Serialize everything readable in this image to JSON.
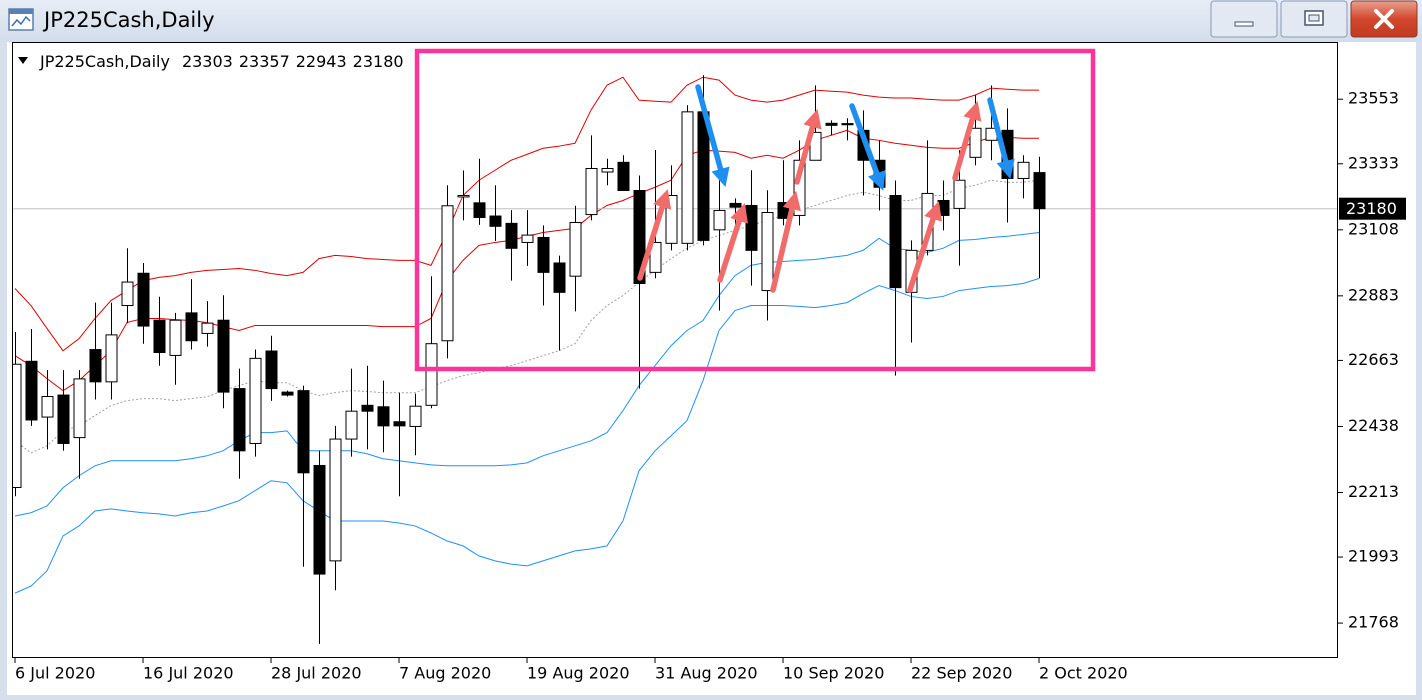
{
  "window": {
    "title": "JP225Cash,Daily"
  },
  "chart_data": {
    "type": "candlestick",
    "title": "JP225Cash,Daily",
    "categories": [
      "6 Jul 2020",
      null,
      null,
      null,
      null,
      null,
      null,
      null,
      "16 Jul 2020",
      null,
      null,
      null,
      null,
      null,
      null,
      null,
      "28 Jul 2020",
      null,
      null,
      null,
      null,
      null,
      null,
      null,
      "7 Aug 2020",
      null,
      null,
      null,
      null,
      null,
      null,
      null,
      "19 Aug 2020",
      null,
      null,
      null,
      null,
      null,
      null,
      null,
      "31 Aug 2020",
      null,
      null,
      null,
      null,
      null,
      null,
      null,
      "10 Sep 2020",
      null,
      null,
      null,
      null,
      null,
      null,
      null,
      "22 Sep 2020",
      null,
      null,
      null,
      null,
      null,
      null,
      null,
      "2 Oct 2020"
    ],
    "candles": {
      "up_color": "#ffffff",
      "down_color": "#000000",
      "open": [
        22230,
        22660,
        22470,
        22545,
        22400,
        22700,
        22590,
        22850,
        22960,
        22800,
        22680,
        22825,
        22755,
        22800,
        22567,
        22380,
        22695,
        22555,
        22560,
        22305,
        21980,
        22395,
        22510,
        22505,
        22454,
        22438,
        22510,
        22730,
        23220,
        23200,
        23155,
        23130,
        23065,
        23082,
        22995,
        22950,
        23160,
        23305,
        23338,
        23242,
        22963,
        23062,
        23062,
        23510,
        23108,
        23198,
        23191,
        22901,
        23201,
        23157,
        23345,
        23471,
        23470,
        23447,
        23345,
        23225,
        22895,
        23038,
        23208,
        23181,
        23355,
        23413,
        23447,
        23283,
        23303
      ],
      "high": [
        22760,
        22770,
        22630,
        22630,
        22630,
        22860,
        22860,
        23045,
        22995,
        22880,
        22825,
        22940,
        22865,
        22885,
        22635,
        22700,
        22747,
        22560,
        22577,
        22355,
        22440,
        22635,
        22645,
        22594,
        22553,
        22550,
        22950,
        23260,
        23310,
        23350,
        23260,
        23175,
        23175,
        23123,
        23020,
        23190,
        23430,
        23350,
        23362,
        23293,
        23380,
        23328,
        23533,
        23635,
        23277,
        23215,
        23311,
        23243,
        23345,
        23413,
        23600,
        23481,
        23488,
        23515,
        23413,
        23276,
        23072,
        23413,
        23276,
        23379,
        23566,
        23600,
        23522,
        23362,
        23357
      ],
      "low": [
        22200,
        22440,
        22360,
        22355,
        22260,
        22530,
        22530,
        22790,
        22720,
        22645,
        22580,
        22700,
        22710,
        22500,
        22260,
        22335,
        22525,
        22540,
        21960,
        21697,
        21880,
        22335,
        22360,
        22350,
        22200,
        22340,
        22500,
        22670,
        23140,
        23125,
        23070,
        22935,
        22985,
        22850,
        22697,
        22830,
        23140,
        23260,
        23242,
        22567,
        22943,
        23038,
        23038,
        23055,
        22833,
        23123,
        22918,
        22799,
        23123,
        23123,
        23345,
        23430,
        23413,
        23225,
        23174,
        22611,
        22724,
        23021,
        23106,
        22986,
        23328,
        23345,
        23133,
        23215,
        22943
      ],
      "close": [
        22650,
        22460,
        22540,
        22380,
        22600,
        22590,
        22750,
        22930,
        22780,
        22690,
        22800,
        22730,
        22790,
        22555,
        22355,
        22670,
        22567,
        22545,
        22280,
        21935,
        22395,
        22490,
        22490,
        22440,
        22440,
        22507,
        22720,
        23190,
        23225,
        23150,
        23120,
        23045,
        23090,
        22963,
        22895,
        23133,
        23317,
        23317,
        23242,
        22925,
        23065,
        23225,
        23510,
        23072,
        23174,
        23185,
        23038,
        23167,
        23147,
        23345,
        23440,
        23464,
        23466,
        23345,
        23253,
        22911,
        23038,
        23232,
        23157,
        23277,
        23454,
        23454,
        23283,
        23338,
        23180
      ]
    },
    "lines": [
      {
        "color": "#e00000",
        "values": [
          22908,
          22850,
          22772,
          22696,
          22737,
          22806,
          22867,
          22901,
          22935,
          22946,
          22952,
          22963,
          22970,
          22973,
          22976,
          22970,
          22959,
          22952,
          22963,
          23010,
          23021,
          23017,
          23010,
          23007,
          23004,
          23004,
          22987,
          23099,
          23225,
          23277,
          23311,
          23345,
          23365,
          23386,
          23393,
          23403,
          23516,
          23601,
          23628,
          23550,
          23546,
          23543,
          23601,
          23628,
          23618,
          23567,
          23550,
          23543,
          23550,
          23567,
          23584,
          23580,
          23577,
          23567,
          23560,
          23557,
          23557,
          23553,
          23550,
          23550,
          23567,
          23591,
          23587,
          23584,
          23584
        ]
      },
      {
        "color": "#e00000",
        "values": [
          22679,
          22645,
          22601,
          22560,
          22594,
          22645,
          22696,
          22792,
          22806,
          22806,
          22802,
          22799,
          22792,
          22778,
          22765,
          22782,
          22782,
          22782,
          22782,
          22782,
          22782,
          22782,
          22782,
          22778,
          22778,
          22778,
          22806,
          22935,
          23004,
          23055,
          23065,
          23072,
          23086,
          23099,
          23106,
          23113,
          23157,
          23191,
          23208,
          23232,
          23253,
          23277,
          23362,
          23379,
          23376,
          23372,
          23352,
          23362,
          23352,
          23379,
          23413,
          23430,
          23447,
          23420,
          23413,
          23403,
          23396,
          23389,
          23386,
          23386,
          23406,
          23423,
          23423,
          23420,
          23420
        ]
      },
      {
        "color": "#a0a0a0",
        "dash": "dotted",
        "values": [
          22389,
          22348,
          22372,
          22423,
          22440,
          22475,
          22509,
          22526,
          22533,
          22533,
          22526,
          22533,
          22539,
          22560,
          22577,
          22594,
          22587,
          22587,
          22560,
          22543,
          22553,
          22560,
          22557,
          22553,
          22553,
          22553,
          22574,
          22594,
          22611,
          22621,
          22635,
          22645,
          22662,
          22679,
          22696,
          22720,
          22799,
          22850,
          22884,
          22929,
          22970,
          23010,
          23045,
          23072,
          23089,
          23106,
          23123,
          23140,
          23157,
          23174,
          23191,
          23208,
          23225,
          23236,
          23225,
          23208,
          23208,
          23225,
          23225,
          23249,
          23260,
          23277,
          23270,
          23270,
          23277
        ]
      },
      {
        "color": "#1e90ff",
        "values": [
          22133,
          22144,
          22167,
          22229,
          22270,
          22304,
          22321,
          22321,
          22321,
          22321,
          22321,
          22328,
          22338,
          22355,
          22389,
          22417,
          22417,
          22423,
          22355,
          22355,
          22355,
          22355,
          22345,
          22328,
          22321,
          22314,
          22307,
          22304,
          22304,
          22304,
          22304,
          22307,
          22314,
          22338,
          22355,
          22372,
          22389,
          22417,
          22492,
          22577,
          22645,
          22713,
          22765,
          22799,
          22884,
          22952,
          22987,
          22997,
          23000,
          23004,
          23007,
          23014,
          23021,
          23038,
          23079,
          23045,
          23038,
          23031,
          23045,
          23072,
          23075,
          23082,
          23086,
          23092,
          23099
        ]
      },
      {
        "color": "#1e90ff",
        "values": [
          21870,
          21894,
          21946,
          22065,
          22099,
          22150,
          22157,
          22150,
          22144,
          22140,
          22133,
          22144,
          22150,
          22167,
          22185,
          22219,
          22253,
          22246,
          22185,
          22150,
          22116,
          22116,
          22116,
          22116,
          22109,
          22099,
          22075,
          22048,
          22031,
          21997,
          21980,
          21969,
          21963,
          21980,
          21997,
          22014,
          22021,
          22031,
          22116,
          22287,
          22355,
          22406,
          22458,
          22594,
          22765,
          22833,
          22850,
          22850,
          22850,
          22847,
          22843,
          22850,
          22860,
          22891,
          22918,
          22901,
          22881,
          22874,
          22881,
          22901,
          22908,
          22915,
          22918,
          22925,
          22942
        ]
      }
    ],
    "ylim": [
      21649,
      23748
    ],
    "yticks": [
      21768,
      21993,
      22213,
      22438,
      22663,
      22883,
      23108,
      23333,
      23553
    ],
    "grid": false
  }
}
